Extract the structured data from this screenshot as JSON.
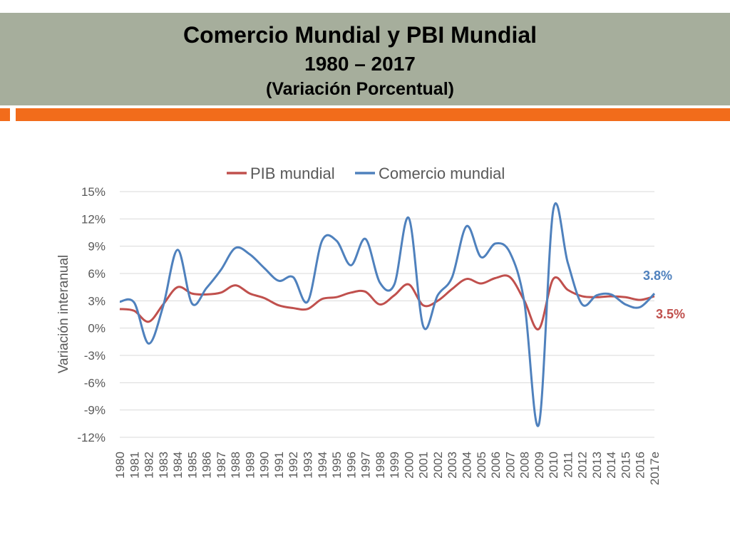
{
  "slide": {
    "title_line1": "Comercio Mundial y PBI Mundial",
    "title_line2": "1980 – 2017",
    "title_line3": "(Variación Porcentual)",
    "band_color": "#a6ae9c",
    "accent_color": "#f26c1b"
  },
  "chart_data": {
    "type": "line",
    "title": "",
    "xlabel": "",
    "ylabel": "Variación interanual",
    "ylim": [
      -12,
      15
    ],
    "yticks": [
      -12,
      -9,
      -6,
      -3,
      0,
      3,
      6,
      9,
      12,
      15
    ],
    "ytick_labels": [
      "-12%",
      "-9%",
      "-6%",
      "-3%",
      "0%",
      "3%",
      "6%",
      "9%",
      "12%",
      "15%"
    ],
    "grid": true,
    "legend_position": "top-center",
    "categories": [
      "1980",
      "1981",
      "1982",
      "1983",
      "1984",
      "1985",
      "1986",
      "1987",
      "1988",
      "1989",
      "1990",
      "1991",
      "1992",
      "1993",
      "1994",
      "1995",
      "1996",
      "1997",
      "1998",
      "1999",
      "2000",
      "2001",
      "2002",
      "2003",
      "2004",
      "2005",
      "2006",
      "2007",
      "2008",
      "2009",
      "2010",
      "2011",
      "2012",
      "2013",
      "2014",
      "2015",
      "2016",
      "2017e"
    ],
    "series": [
      {
        "name": "PIB mundial",
        "color": "#c0504d",
        "values": [
          2.1,
          1.9,
          0.7,
          2.6,
          4.5,
          3.8,
          3.7,
          3.9,
          4.7,
          3.8,
          3.3,
          2.5,
          2.2,
          2.1,
          3.2,
          3.4,
          3.9,
          4.0,
          2.6,
          3.6,
          4.8,
          2.5,
          3.0,
          4.3,
          5.4,
          4.9,
          5.5,
          5.6,
          3.0,
          -0.1,
          5.4,
          4.2,
          3.5,
          3.4,
          3.5,
          3.4,
          3.1,
          3.5
        ],
        "end_label": "3.5%"
      },
      {
        "name": "Comercio mundial",
        "color": "#4f81bd",
        "values": [
          2.9,
          2.8,
          -1.7,
          2.4,
          8.6,
          2.7,
          4.4,
          6.4,
          8.8,
          8.1,
          6.6,
          5.2,
          5.6,
          2.9,
          9.6,
          9.6,
          6.9,
          9.8,
          5.0,
          4.8,
          12.1,
          0.2,
          3.6,
          5.6,
          11.2,
          7.8,
          9.3,
          8.3,
          2.8,
          -10.6,
          13.0,
          7.2,
          2.6,
          3.6,
          3.7,
          2.6,
          2.3,
          3.8
        ],
        "end_label": "3.8%"
      }
    ]
  }
}
